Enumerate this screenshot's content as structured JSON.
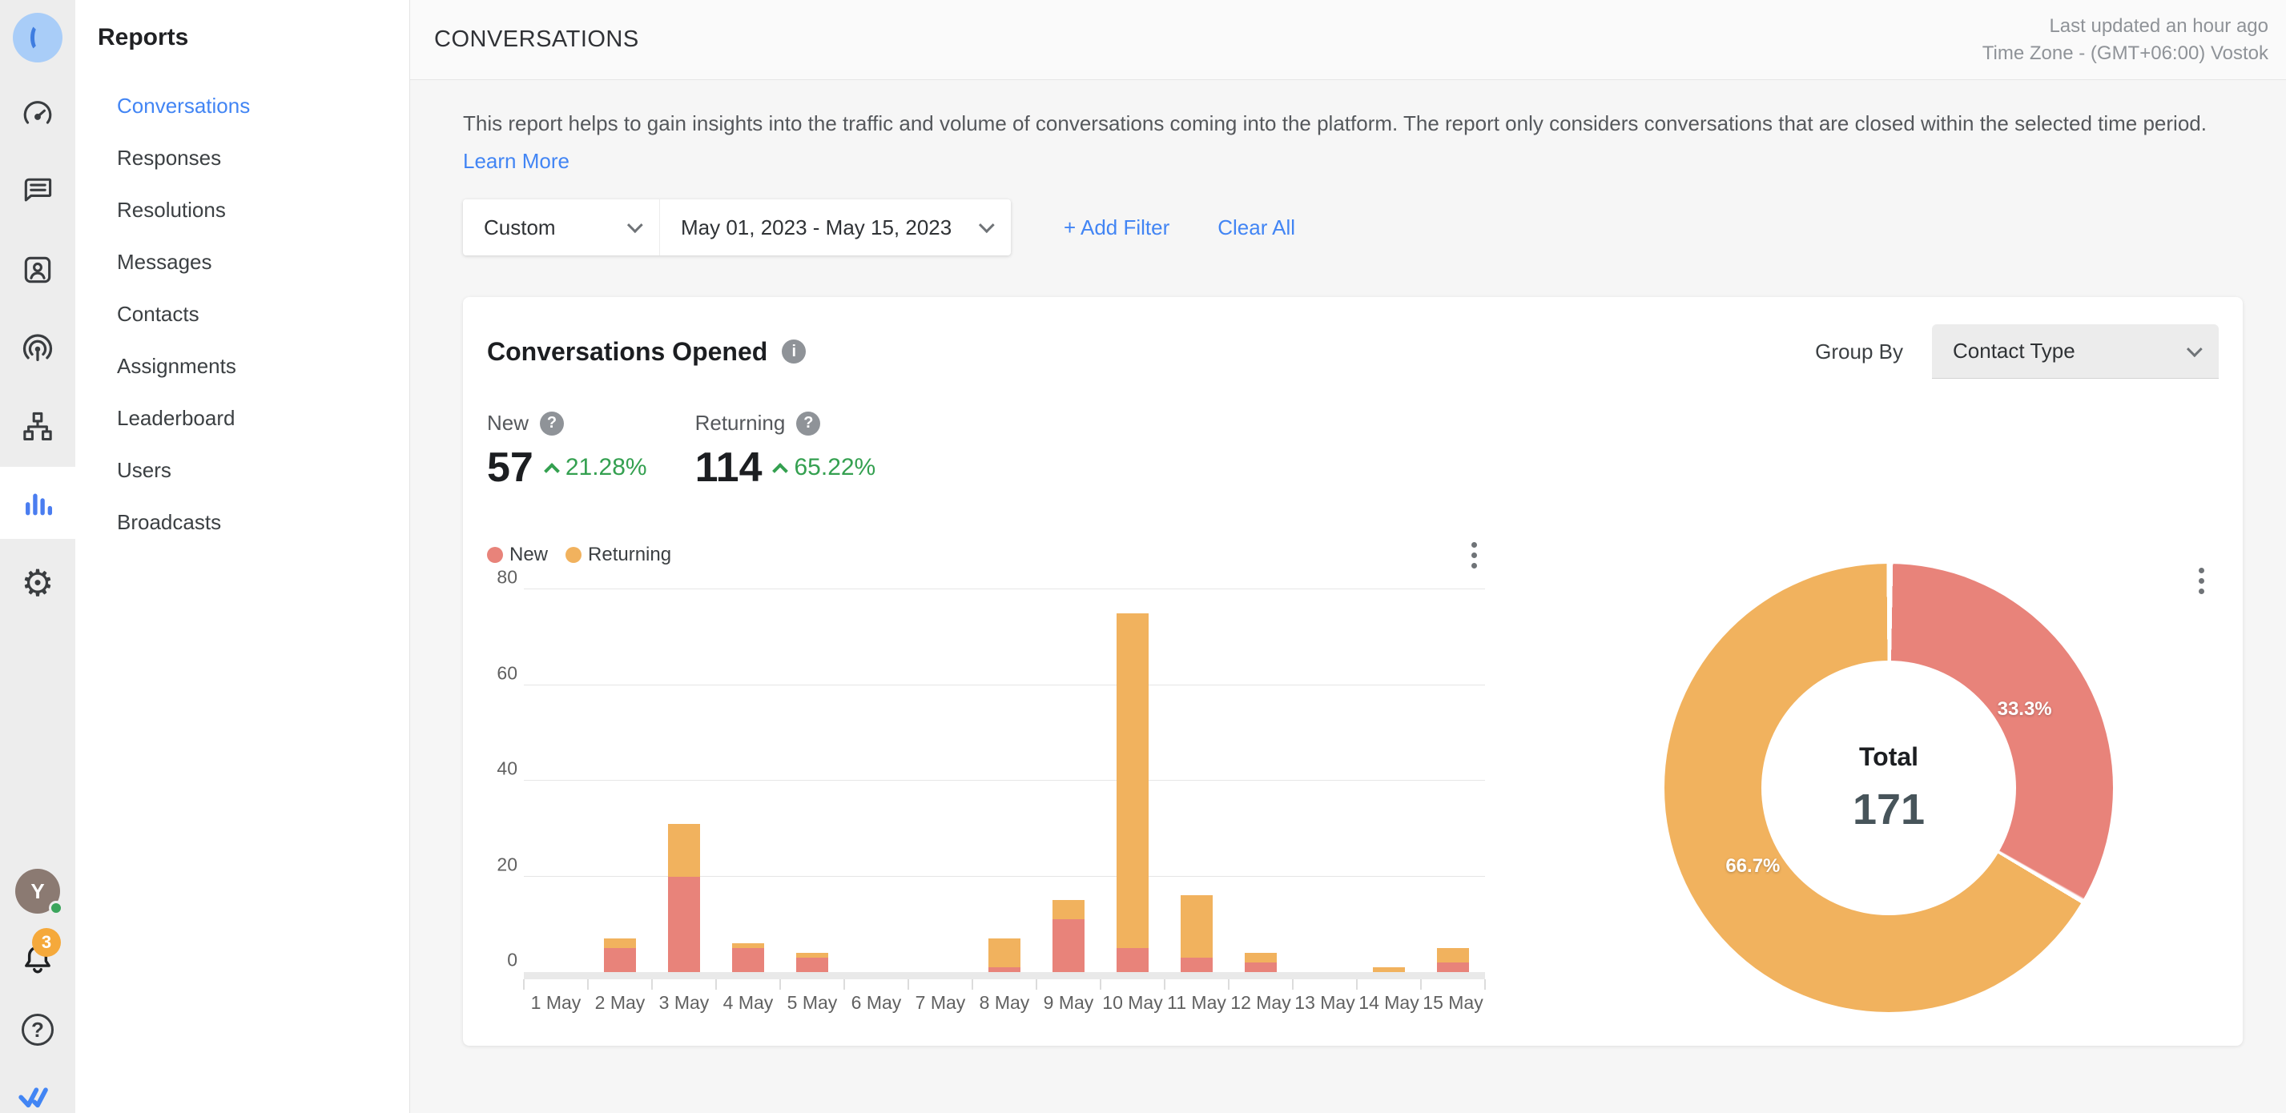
{
  "colors": {
    "new": "#E8837A",
    "returning": "#F1B25E",
    "accent_blue": "#4285F4",
    "green": "#34A050"
  },
  "sidebar": {
    "rail_icons": [
      "workspace-logo",
      "dashboard-icon",
      "inbox-icon",
      "contacts-icon",
      "broadcast-icon",
      "workflows-icon",
      "reports-icon",
      "settings-icon",
      "avatar",
      "notifications-icon",
      "help-icon",
      "brand-logo"
    ],
    "avatar_initial": "Y",
    "bell_badge": "3",
    "title": "Reports",
    "items": [
      {
        "label": "Conversations",
        "active": true
      },
      {
        "label": "Responses",
        "active": false
      },
      {
        "label": "Resolutions",
        "active": false
      },
      {
        "label": "Messages",
        "active": false
      },
      {
        "label": "Contacts",
        "active": false
      },
      {
        "label": "Assignments",
        "active": false
      },
      {
        "label": "Leaderboard",
        "active": false
      },
      {
        "label": "Users",
        "active": false
      },
      {
        "label": "Broadcasts",
        "active": false
      }
    ]
  },
  "header": {
    "title": "CONVERSATIONS",
    "last_updated": "Last updated an hour ago",
    "timezone": "Time Zone - (GMT+06:00) Vostok"
  },
  "intro": {
    "description": "This report helps to gain insights into the traffic and volume of conversations coming into the platform. The report only considers conversations that are closed within the selected time period.",
    "learn_more": "Learn More"
  },
  "filters": {
    "range_type": "Custom",
    "date_range": "May 01, 2023 - May 15, 2023",
    "add_filter_plus": "+",
    "add_filter": "Add Filter",
    "clear_all": "Clear All"
  },
  "card": {
    "title": "Conversations Opened",
    "info_glyph": "i",
    "question_glyph": "?",
    "group_by_label": "Group By",
    "group_by_value": "Contact Type",
    "stats": [
      {
        "label": "New",
        "value": "57",
        "delta": "21.28%"
      },
      {
        "label": "Returning",
        "value": "114",
        "delta": "65.22%"
      }
    ]
  },
  "chart_data": [
    {
      "type": "bar",
      "stacked": true,
      "title": "Conversations Opened by day",
      "categories": [
        "1 May",
        "2 May",
        "3 May",
        "4 May",
        "5 May",
        "6 May",
        "7 May",
        "8 May",
        "9 May",
        "10 May",
        "11 May",
        "12 May",
        "13 May",
        "14 May",
        "15 May"
      ],
      "series": [
        {
          "name": "New",
          "color": "#E8837A",
          "values": [
            0,
            5,
            20,
            5,
            3,
            0,
            0,
            1,
            11,
            5,
            3,
            2,
            0,
            0,
            2
          ]
        },
        {
          "name": "Returning",
          "color": "#F1B25E",
          "values": [
            0,
            2,
            11,
            1,
            1,
            0,
            0,
            6,
            4,
            70,
            13,
            2,
            0,
            1,
            3
          ]
        }
      ],
      "ylim": [
        0,
        80
      ],
      "yticks": [
        0,
        20,
        40,
        60,
        80
      ],
      "grid": true,
      "legend_position": "top-left"
    },
    {
      "type": "donut",
      "slices": [
        {
          "name": "New",
          "pct": 33.3,
          "label": "33.3%",
          "color": "#E8837A"
        },
        {
          "name": "Returning",
          "pct": 66.7,
          "label": "66.7%",
          "color": "#F1B25E"
        }
      ],
      "center_label": "Total",
      "center_value": "171"
    }
  ]
}
